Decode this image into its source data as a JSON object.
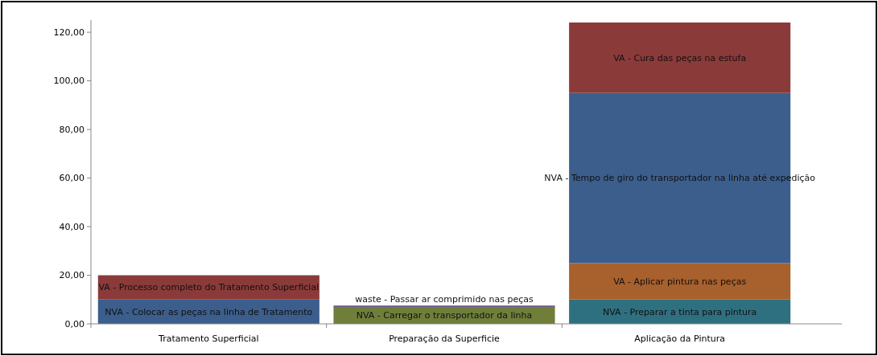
{
  "chart_data": {
    "type": "bar",
    "stacked": true,
    "legend": false,
    "grid": false,
    "categories": [
      "Tratamento Superficial",
      "Preparação da Superficie",
      "Aplicação da Pintura"
    ],
    "series": [
      {
        "name": "NVA - Colocar as peças na linha de Tratamento",
        "color": "#3b5e8c",
        "values": [
          10,
          null,
          null
        ]
      },
      {
        "name": "VA - Processo completo do Tratamento Superficial",
        "color": "#8b3a3a",
        "values": [
          10,
          null,
          null
        ]
      },
      {
        "name": "NVA - Carregar o transportador  da linha",
        "color": "#6f7f3a",
        "values": [
          null,
          7,
          null
        ]
      },
      {
        "name": "waste - Passar ar comprimido nas peças",
        "color": "#5a3e7a",
        "values": [
          null,
          0.5,
          null
        ]
      },
      {
        "name": "NVA - Preparar a tinta para pintura",
        "color": "#2f7080",
        "values": [
          null,
          null,
          10
        ]
      },
      {
        "name": "VA - Aplicar pintura nas peças",
        "color": "#a8602c",
        "values": [
          null,
          null,
          15
        ]
      },
      {
        "name": "NVA - Tempo de giro do transportador na linha até expedição",
        "color": "#3b5e8c",
        "values": [
          null,
          null,
          70
        ]
      },
      {
        "name": "VA - Cura das peças na estufa",
        "color": "#8b3a3a",
        "values": [
          null,
          null,
          29
        ]
      }
    ],
    "ylim": [
      0,
      125
    ],
    "yticks": [
      {
        "value": 0,
        "label": "0,00"
      },
      {
        "value": 20,
        "label": "20,00"
      },
      {
        "value": 40,
        "label": "40,00"
      },
      {
        "value": 60,
        "label": "60,00"
      },
      {
        "value": 80,
        "label": "80,00"
      },
      {
        "value": 100,
        "label": "100,00"
      },
      {
        "value": 120,
        "label": "120,00"
      }
    ]
  }
}
